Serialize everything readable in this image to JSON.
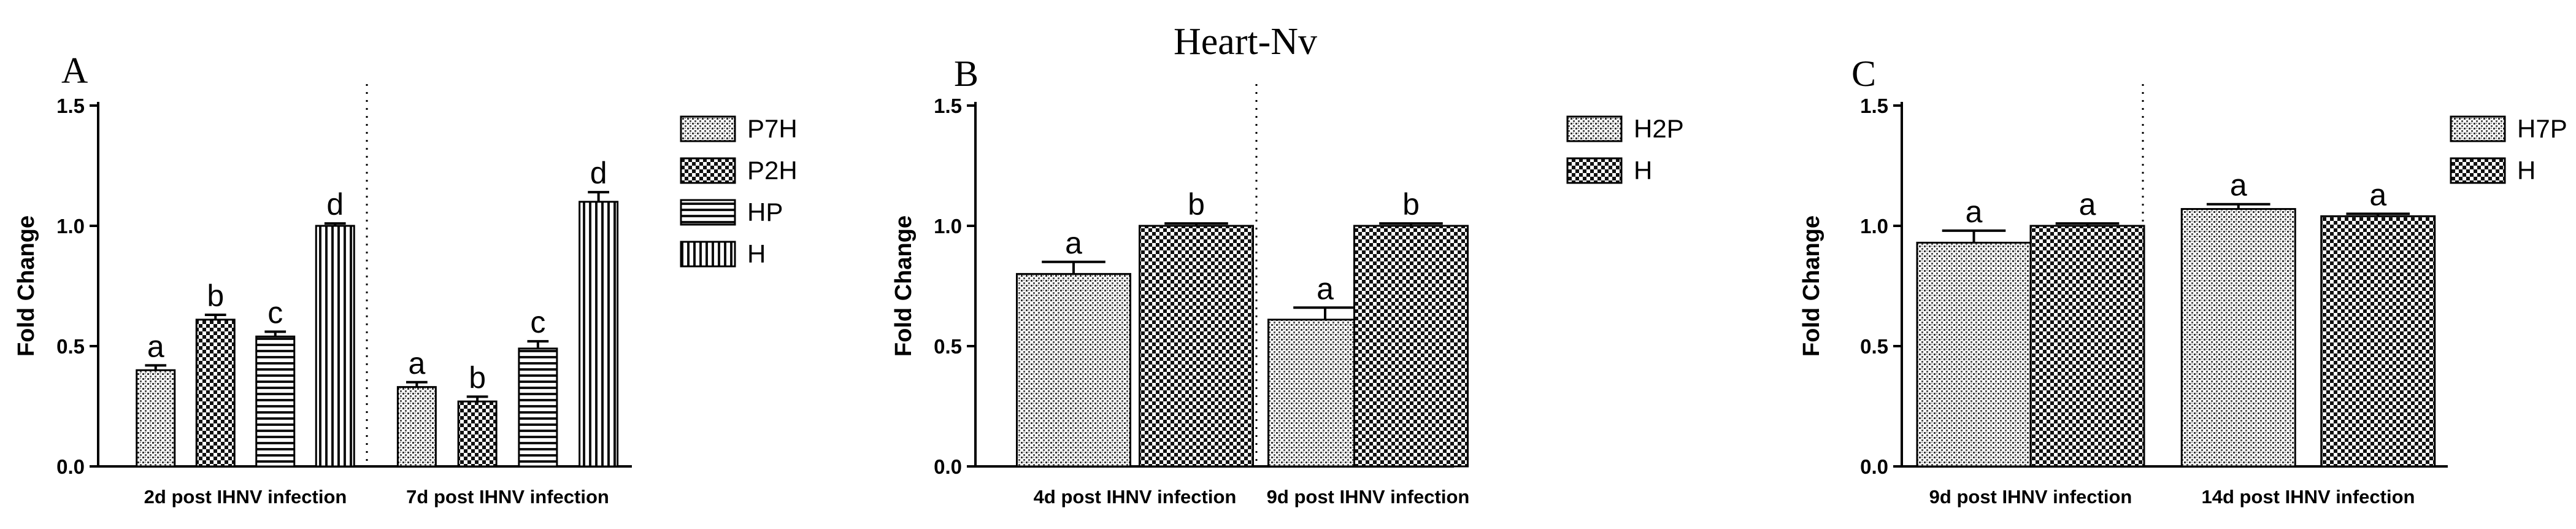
{
  "figure_title": "Heart-Nv",
  "chart_data": [
    {
      "panel": "A",
      "type": "bar",
      "ylabel": "Fold Change",
      "ylim": [
        0,
        1.5
      ],
      "yticks": [
        "0.0",
        "0.5",
        "1.0",
        "1.5"
      ],
      "categories": [
        "2d post IHNV infection",
        "7d post IHNV infection"
      ],
      "series": [
        {
          "name": "P7H",
          "pattern": "fine-dots",
          "values": [
            0.4,
            0.33
          ],
          "errors": [
            0.02,
            0.02
          ],
          "labels": [
            "a",
            "a"
          ]
        },
        {
          "name": "P2H",
          "pattern": "checker",
          "values": [
            0.61,
            0.27
          ],
          "errors": [
            0.02,
            0.02
          ],
          "labels": [
            "b",
            "b"
          ]
        },
        {
          "name": "HP",
          "pattern": "horizontal",
          "values": [
            0.54,
            0.49
          ],
          "errors": [
            0.02,
            0.03
          ],
          "labels": [
            "c",
            "c"
          ]
        },
        {
          "name": "H",
          "pattern": "vertical",
          "values": [
            1.0,
            1.1
          ],
          "errors": [
            0.01,
            0.04
          ],
          "labels": [
            "d",
            "d"
          ]
        }
      ],
      "legend_position": "right"
    },
    {
      "panel": "B",
      "type": "bar",
      "ylabel": "Fold Change",
      "ylim": [
        0,
        1.5
      ],
      "yticks": [
        "0.0",
        "0.5",
        "1.0",
        "1.5"
      ],
      "categories": [
        "4d post IHNV infection",
        "9d post IHNV infection"
      ],
      "series": [
        {
          "name": "H2P",
          "pattern": "fine-dots",
          "values": [
            0.8,
            0.61
          ],
          "errors": [
            0.05,
            0.05
          ],
          "labels": [
            "a",
            "a"
          ]
        },
        {
          "name": "H",
          "pattern": "checker",
          "values": [
            1.0,
            1.0
          ],
          "errors": [
            0.01,
            0.01
          ],
          "labels": [
            "b",
            "b"
          ]
        }
      ],
      "legend_position": "right"
    },
    {
      "panel": "C",
      "type": "bar",
      "ylabel": "Fold Change",
      "ylim": [
        0,
        1.5
      ],
      "yticks": [
        "0.0",
        "0.5",
        "1.0",
        "1.5"
      ],
      "categories": [
        "9d post IHNV infection",
        "14d post IHNV infection"
      ],
      "series": [
        {
          "name": "H7P",
          "pattern": "fine-dots",
          "values": [
            0.93,
            1.07
          ],
          "errors": [
            0.05,
            0.02
          ],
          "labels": [
            "a",
            "a"
          ]
        },
        {
          "name": "H",
          "pattern": "checker",
          "values": [
            1.0,
            1.04
          ],
          "errors": [
            0.01,
            0.01
          ],
          "labels": [
            "a",
            "a"
          ]
        }
      ],
      "legend_position": "right"
    }
  ]
}
